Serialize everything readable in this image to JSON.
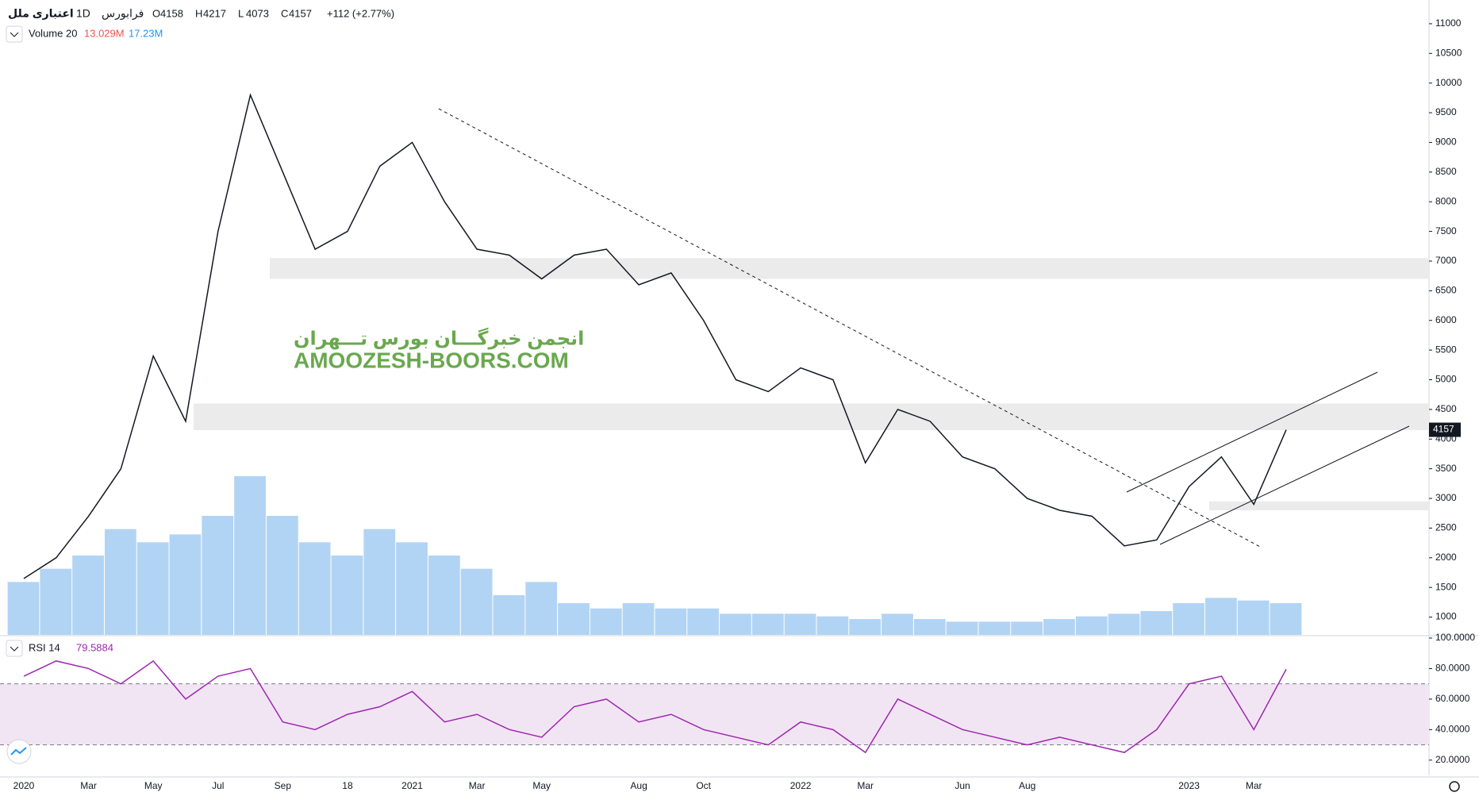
{
  "header": {
    "symbol": "اعتباری ملل",
    "interval": "1D",
    "exchange": "فرابورس",
    "ohlc_labels": [
      "O",
      "H",
      "L",
      "C"
    ],
    "ohlc": [
      4158,
      4217,
      4073,
      4157
    ],
    "change": "+112 (+2.77%)"
  },
  "watermark": {
    "line1": "انجمن خبرگـــان بورس تـــهران",
    "line2": "AMOOZESH-BOORS.COM"
  },
  "chart_data": [
    {
      "type": "line",
      "name": "price",
      "color": "#131722",
      "categories": [
        "2020",
        null,
        "Mar",
        null,
        "May",
        null,
        "Jul",
        null,
        "Sep",
        null,
        "18",
        null,
        "2021",
        null,
        "Mar",
        null,
        "May",
        null,
        null,
        "Aug",
        null,
        "Oct",
        null,
        null,
        "2022",
        null,
        "Mar",
        null,
        null,
        "Jun",
        null,
        "Aug",
        null,
        null,
        null,
        null,
        "2023",
        null,
        "Mar",
        null
      ],
      "values": [
        1650,
        2000,
        2700,
        3500,
        5400,
        4300,
        7500,
        9800,
        8500,
        7200,
        7500,
        8600,
        9000,
        8000,
        7200,
        7100,
        6700,
        7100,
        7200,
        6600,
        6800,
        6000,
        5000,
        4800,
        5200,
        5000,
        3600,
        4500,
        4300,
        3700,
        3500,
        3000,
        2800,
        2700,
        2200,
        2300,
        3200,
        3700,
        2900,
        4157
      ],
      "last_label": "4157",
      "last_color": "#131722",
      "ylim": [
        700,
        11400
      ],
      "yticks": [
        1000,
        1500,
        2000,
        2500,
        3000,
        3500,
        4000,
        4500,
        5000,
        5500,
        6000,
        6500,
        7000,
        7500,
        8000,
        8500,
        9000,
        9500,
        10000,
        10500,
        11000
      ],
      "zones": [
        [
          6700,
          7050
        ],
        [
          4150,
          4600
        ],
        [
          2800,
          2950
        ]
      ],
      "zone_color": "#ebebeb",
      "volume": {
        "name": "Volume 20",
        "ma_label": "13.029M",
        "last_label": "17.23M",
        "color": "#7fb8ec",
        "values": [
          20,
          25,
          30,
          40,
          35,
          38,
          45,
          60,
          45,
          35,
          30,
          40,
          35,
          30,
          25,
          15,
          20,
          12,
          10,
          12,
          10,
          10,
          8,
          8,
          8,
          7,
          6,
          8,
          6,
          5,
          5,
          5,
          6,
          7,
          8,
          9,
          12,
          14,
          13,
          12
        ]
      }
    },
    {
      "type": "line",
      "name": "RSI",
      "title": "RSI 14",
      "last_label": "79.5884",
      "color": "#9c27b0",
      "values": [
        75,
        85,
        80,
        70,
        85,
        60,
        75,
        80,
        45,
        40,
        50,
        55,
        65,
        45,
        50,
        40,
        35,
        55,
        60,
        45,
        50,
        40,
        35,
        30,
        45,
        40,
        25,
        60,
        50,
        40,
        35,
        30,
        35,
        30,
        25,
        40,
        70,
        75,
        40,
        79.5884
      ],
      "ylim": [
        10,
        100
      ],
      "yticks": [
        {
          "value": 20,
          "label": "20.0000"
        },
        {
          "value": 40,
          "label": "40.0000"
        },
        {
          "value": 60,
          "label": "60.0000"
        },
        {
          "value": 80,
          "label": "80.0000"
        },
        {
          "value": 100,
          "label": "100.0000"
        }
      ],
      "band": [
        30,
        70
      ],
      "band_color": "#f2e5f3"
    }
  ]
}
